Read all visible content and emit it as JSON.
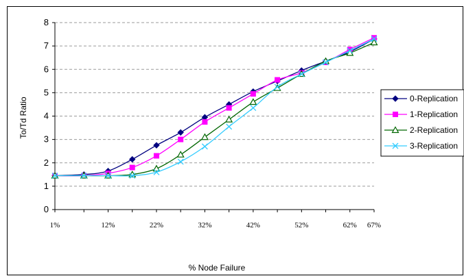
{
  "chart_data": {
    "type": "line",
    "title": "",
    "xlabel": "% Node Failure",
    "ylabel": "To/Td Ratio",
    "ylim": [
      0,
      8
    ],
    "yticks": [
      "0",
      "1",
      "2",
      "3",
      "4",
      "5",
      "6",
      "7",
      "8"
    ],
    "x_tick_labels": [
      "1%",
      "12%",
      "22%",
      "32%",
      "42%",
      "52%",
      "62%",
      "67%"
    ],
    "x_tick_values": [
      1,
      12,
      22,
      32,
      42,
      52,
      62,
      67
    ],
    "grid": "horizontal dashed",
    "legend_position": "right",
    "x": [
      1,
      7,
      12,
      17,
      22,
      27,
      32,
      37,
      42,
      47,
      52,
      57,
      62,
      67
    ],
    "series": [
      {
        "name": "0-Replication",
        "color": "#000080",
        "marker": "diamond",
        "values": [
          1.45,
          1.5,
          1.65,
          2.15,
          2.75,
          3.3,
          3.95,
          4.5,
          5.05,
          5.5,
          5.95,
          6.35,
          6.75,
          7.3
        ]
      },
      {
        "name": "1-Replication",
        "color": "#ff00ff",
        "marker": "square",
        "values": [
          1.45,
          1.45,
          1.55,
          1.8,
          2.3,
          3.0,
          3.75,
          4.35,
          4.95,
          5.55,
          5.85,
          6.3,
          6.85,
          7.35
        ]
      },
      {
        "name": "2-Replication",
        "color": "#006600",
        "marker": "triangle",
        "values": [
          1.45,
          1.45,
          1.45,
          1.5,
          1.75,
          2.35,
          3.1,
          3.85,
          4.6,
          5.2,
          5.8,
          6.35,
          6.7,
          7.15
        ]
      },
      {
        "name": "3-Replication",
        "color": "#33ccff",
        "marker": "x",
        "values": [
          1.45,
          1.45,
          1.45,
          1.45,
          1.6,
          2.05,
          2.7,
          3.55,
          4.35,
          5.25,
          5.8,
          6.3,
          6.8,
          7.3
        ]
      }
    ]
  }
}
